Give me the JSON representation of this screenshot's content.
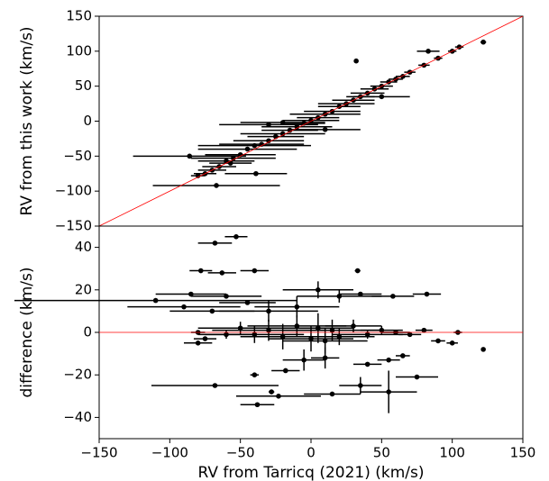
{
  "chart_data": [
    {
      "type": "scatter",
      "ylabel": "RV from this work (km/s)",
      "color": "#000000",
      "reference_line": {
        "slope": 1,
        "intercept": 0,
        "color": "#ff0000"
      },
      "xlim": [
        -150,
        150
      ],
      "ylim": [
        -150,
        150
      ],
      "yticks": [
        {
          "value": -150,
          "label": "−150"
        },
        {
          "value": -100,
          "label": "−100"
        },
        {
          "value": -50,
          "label": "−50"
        },
        0,
        50,
        100,
        150
      ],
      "x": [
        -80,
        -75,
        -70,
        -65,
        -60,
        -55,
        -50,
        -45,
        -40,
        -35,
        -30,
        -25,
        -20,
        -15,
        -10,
        -5,
        0,
        5,
        10,
        15,
        20,
        25,
        30,
        35,
        40,
        45,
        50,
        55,
        60,
        65,
        70,
        80,
        90,
        100,
        105,
        122,
        -67,
        -39,
        -86,
        32,
        83,
        -57,
        -20,
        10,
        50,
        -30
      ],
      "y": [
        -78,
        -75,
        -70,
        -65,
        -57,
        -53,
        -48,
        -40,
        -35,
        -33,
        -28,
        -22,
        -18,
        -13,
        -8,
        -3,
        1,
        5,
        10,
        14,
        21,
        25,
        30,
        35,
        40,
        46,
        50,
        56,
        60,
        64,
        70,
        80,
        90,
        100,
        106,
        113,
        -92,
        -75,
        -50,
        86,
        100,
        -60,
        -2,
        -12,
        35,
        -5
      ],
      "xerr": [
        5,
        8,
        10,
        12,
        20,
        30,
        25,
        35,
        40,
        30,
        25,
        20,
        30,
        20,
        25,
        15,
        20,
        15,
        25,
        20,
        15,
        20,
        15,
        10,
        12,
        10,
        8,
        6,
        5,
        5,
        4,
        4,
        3,
        3,
        3,
        2,
        45,
        22,
        40,
        0,
        8,
        15,
        30,
        25,
        20,
        35
      ]
    },
    {
      "type": "scatter",
      "ylabel": "difference (km/s)",
      "xlabel": "RV from Tarricq (2021) (km/s)",
      "color": "#000000",
      "reference_line": {
        "slope": 0,
        "intercept": 0,
        "color": "#ff0000"
      },
      "xlim": [
        -150,
        150
      ],
      "ylim": [
        -50,
        50
      ],
      "xticks": [
        {
          "value": -150,
          "label": "−150"
        },
        {
          "value": -100,
          "label": "−100"
        },
        {
          "value": -50,
          "label": "−50"
        },
        0,
        50,
        100,
        150
      ],
      "yticks": [
        {
          "value": -40,
          "label": "−40"
        },
        {
          "value": -20,
          "label": "−20"
        },
        0,
        20,
        40
      ],
      "x": [
        -53,
        -68,
        -78,
        -63,
        -40,
        33,
        -85,
        -60,
        -110,
        -45,
        -90,
        -70,
        -30,
        -10,
        5,
        20,
        35,
        58,
        82,
        -80,
        -75,
        -60,
        -50,
        -40,
        -30,
        -20,
        -10,
        0,
        5,
        10,
        15,
        20,
        30,
        40,
        50,
        60,
        70,
        80,
        90,
        100,
        104,
        -68,
        -38,
        -23,
        -28,
        -18,
        -40,
        15,
        35,
        55,
        75,
        122,
        -5,
        10,
        40,
        55,
        65,
        -80
      ],
      "y": [
        45,
        42,
        29,
        28,
        29,
        29,
        18,
        17,
        15,
        14,
        12,
        10,
        10,
        12,
        20,
        17,
        18,
        17,
        18,
        0,
        -3,
        -1,
        2,
        -1,
        1,
        -2,
        3,
        -3,
        2,
        -4,
        1,
        -2,
        3,
        -1,
        1,
        0,
        -1,
        1,
        -4,
        -5,
        0,
        -25,
        -34,
        -30,
        -28,
        -18,
        -20,
        -29,
        -25,
        -28,
        -21,
        -8,
        -13,
        -12,
        -15,
        -13,
        -11,
        -5
      ],
      "xerr": [
        8,
        12,
        8,
        10,
        10,
        2,
        25,
        25,
        100,
        20,
        40,
        30,
        35,
        30,
        25,
        30,
        15,
        15,
        10,
        5,
        8,
        20,
        30,
        35,
        40,
        30,
        35,
        30,
        25,
        30,
        35,
        25,
        20,
        25,
        15,
        10,
        8,
        6,
        5,
        4,
        3,
        45,
        12,
        30,
        2,
        10,
        3,
        20,
        15,
        20,
        15,
        0,
        15,
        10,
        10,
        8,
        5,
        10
      ],
      "yerr": [
        0,
        0,
        0,
        0,
        0,
        1,
        0,
        0,
        0,
        0,
        0,
        0,
        5,
        5,
        4,
        3,
        0,
        0,
        0,
        0,
        0,
        2,
        3,
        4,
        5,
        6,
        5,
        6,
        7,
        6,
        5,
        4,
        3,
        2,
        2,
        1,
        0,
        0,
        0,
        0,
        0,
        0,
        0,
        0,
        1,
        0,
        0,
        0,
        4,
        10,
        0,
        0,
        5,
        5,
        0,
        0,
        0,
        0
      ]
    }
  ]
}
